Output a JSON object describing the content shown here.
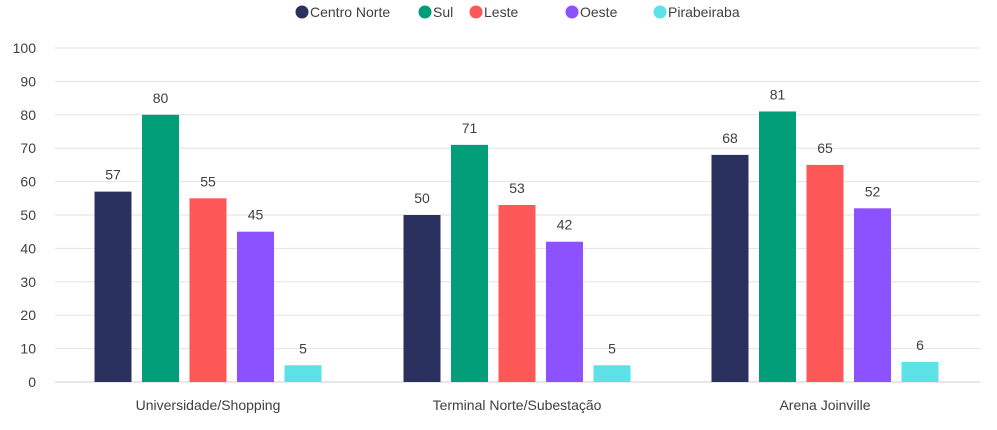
{
  "chart_data": {
    "type": "bar",
    "title": "",
    "xlabel": "",
    "ylabel": "",
    "categories": [
      "Universidade/Shopping",
      "Terminal Norte/Subestação",
      "Arena Joinville"
    ],
    "series": [
      {
        "name": "Centro Norte",
        "color": "#2a315e",
        "values": [
          57,
          50,
          68
        ]
      },
      {
        "name": "Sul",
        "color": "#029e7a",
        "values": [
          80,
          71,
          81
        ]
      },
      {
        "name": "Leste",
        "color": "#fe5757",
        "values": [
          55,
          53,
          65
        ]
      },
      {
        "name": "Oeste",
        "color": "#8c52ff",
        "values": [
          45,
          42,
          52
        ]
      },
      {
        "name": "Pirabeiraba",
        "color": "#5ce1e6",
        "values": [
          5,
          5,
          6
        ]
      }
    ],
    "ylim": [
      0,
      100
    ],
    "yticks": [
      0,
      10,
      20,
      30,
      40,
      50,
      60,
      70,
      80,
      90,
      100
    ],
    "grid": true,
    "legend_position": "top",
    "data_labels": true
  }
}
